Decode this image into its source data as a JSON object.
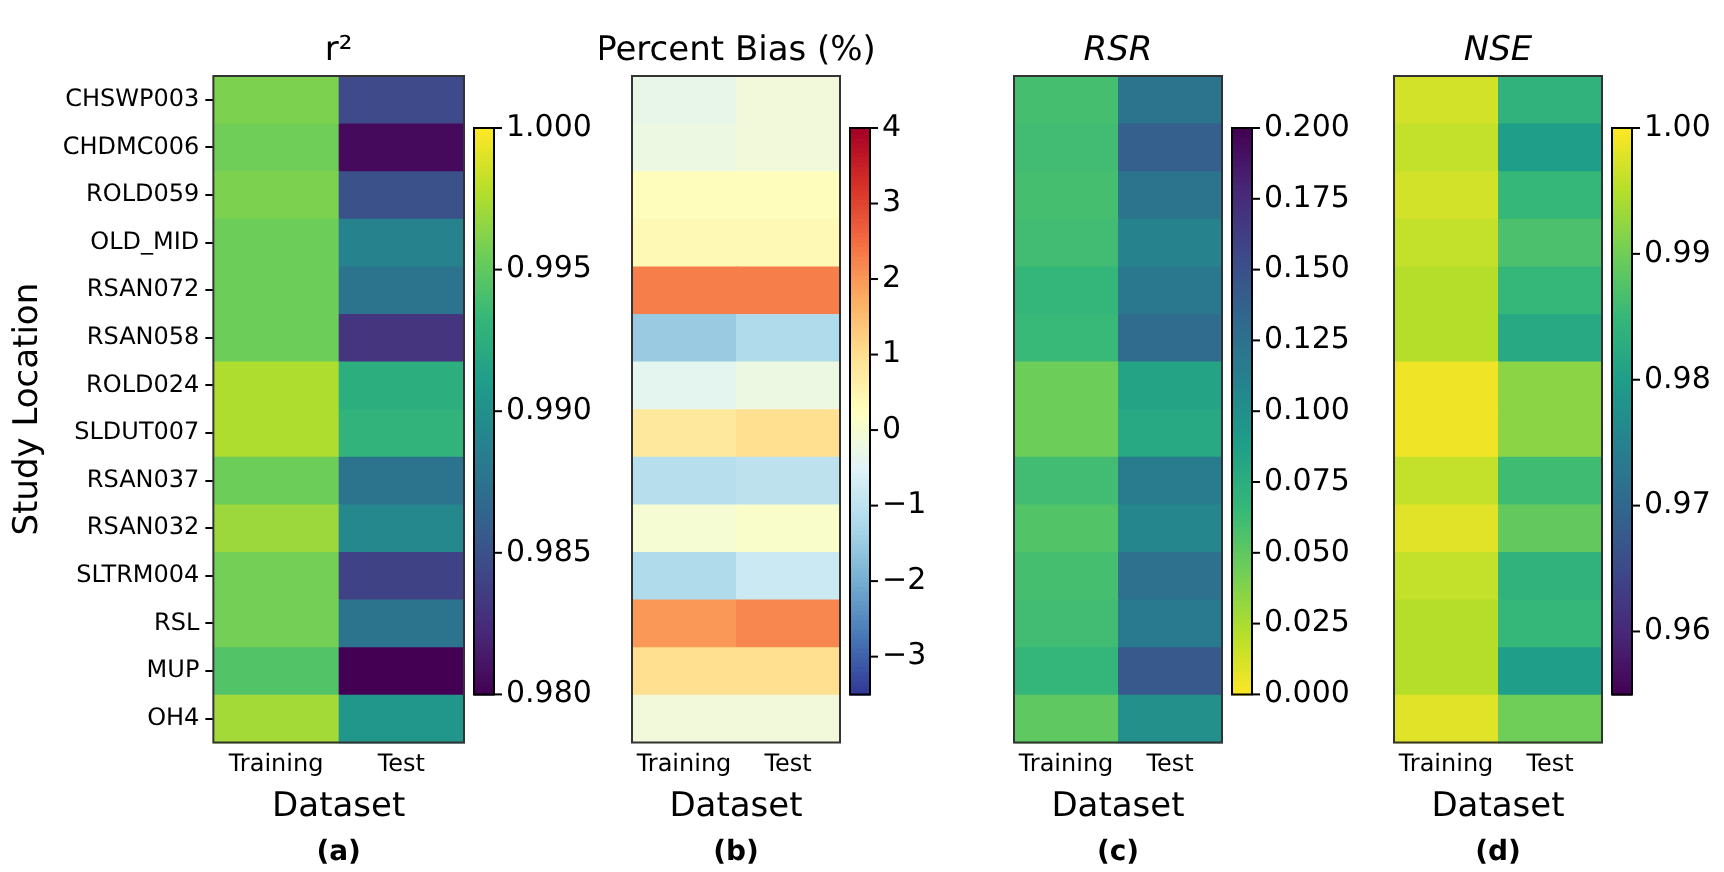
{
  "chart_data": [
    {
      "type": "heatmap",
      "title": "r²",
      "xlabel": "Dataset",
      "ylabel": "Study Location",
      "annotations": [
        "(a)"
      ],
      "categories": [
        "Training",
        "Test"
      ],
      "y_categories": [
        "CHSWP003",
        "CHDMC006",
        "ROLD059",
        "OLD_MID",
        "RSAN072",
        "RSAN058",
        "ROLD024",
        "SLDUT007",
        "RSAN037",
        "RSAN032",
        "SLTRM004",
        "RSL",
        "MUP",
        "OH4"
      ],
      "cells": [
        [
          0.996,
          0.9845
        ],
        [
          0.9956,
          0.9805
        ],
        [
          0.996,
          0.985
        ],
        [
          0.9955,
          0.989
        ],
        [
          0.9955,
          0.9876
        ],
        [
          0.9955,
          0.983
        ],
        [
          0.9976,
          0.9925
        ],
        [
          0.9976,
          0.993
        ],
        [
          0.9955,
          0.9876
        ],
        [
          0.997,
          0.9894
        ],
        [
          0.9957,
          0.984
        ],
        [
          0.9957,
          0.9876
        ],
        [
          0.9945,
          0.98
        ],
        [
          0.9972,
          0.9905
        ]
      ],
      "clim": [
        0.98,
        1.0
      ],
      "cticks": [
        {
          "value": 0.98,
          "label": "0.980"
        },
        {
          "value": 0.985,
          "label": "0.985"
        },
        {
          "value": 0.99,
          "label": "0.990"
        },
        {
          "value": 0.995,
          "label": "0.995"
        },
        {
          "value": 1.0,
          "label": "1.000"
        }
      ]
    },
    {
      "type": "heatmap",
      "title": "Percent Bias (%)",
      "xlabel": "Dataset",
      "annotations": [
        "(b)"
      ],
      "tick_labels": "x",
      "categories": [
        "Training",
        "Test"
      ],
      "y_categories": [
        null,
        null,
        null,
        null,
        null,
        null,
        null,
        null,
        null,
        null,
        null,
        null,
        null,
        null
      ],
      "cells": [
        [
          -0.3,
          -0.1
        ],
        [
          -0.2,
          -0.1
        ],
        [
          0.3,
          0.3
        ],
        [
          0.4,
          0.4
        ],
        [
          2.3,
          2.3
        ],
        [
          -1.5,
          -1.2
        ],
        [
          -0.4,
          -0.2
        ],
        [
          0.8,
          1.0
        ],
        [
          -1.1,
          -1.0
        ],
        [
          0.0,
          0.1
        ],
        [
          -1.2,
          -0.8
        ],
        [
          2.0,
          2.2
        ],
        [
          1.0,
          1.0
        ],
        [
          -0.1,
          -0.1
        ]
      ],
      "clim": [
        -3.5,
        4
      ],
      "cticks": [
        {
          "value": -3,
          "label": "−3"
        },
        {
          "value": -2,
          "label": "−2"
        },
        {
          "value": -1,
          "label": "−1"
        },
        0,
        1,
        2,
        3,
        4
      ]
    },
    {
      "type": "heatmap",
      "title": "RSR",
      "xlabel": "Dataset",
      "annotations": [
        "(c)"
      ],
      "tick_labels": "x",
      "categories": [
        "Training",
        "Test"
      ],
      "y_categories": [
        null,
        null,
        null,
        null,
        null,
        null,
        null,
        null,
        null,
        null,
        null,
        null,
        null,
        null
      ],
      "cells": [
        [
          0.06,
          0.124
        ],
        [
          0.062,
          0.14
        ],
        [
          0.06,
          0.124
        ],
        [
          0.062,
          0.11
        ],
        [
          0.068,
          0.12
        ],
        [
          0.065,
          0.13
        ],
        [
          0.045,
          0.084
        ],
        [
          0.045,
          0.08
        ],
        [
          0.062,
          0.116
        ],
        [
          0.055,
          0.108
        ],
        [
          0.06,
          0.126
        ],
        [
          0.062,
          0.118
        ],
        [
          0.068,
          0.144
        ],
        [
          0.05,
          0.1
        ]
      ],
      "clim": [
        0,
        0.2
      ],
      "cticks": [
        {
          "value": 0,
          "label": "0.000"
        },
        {
          "value": 0.025,
          "label": "0.025"
        },
        {
          "value": 0.05,
          "label": "0.050"
        },
        {
          "value": 0.075,
          "label": "0.075"
        },
        {
          "value": 0.1,
          "label": "0.100"
        },
        {
          "value": 0.125,
          "label": "0.125"
        },
        {
          "value": 0.15,
          "label": "0.150"
        },
        {
          "value": 0.175,
          "label": "0.175"
        },
        {
          "value": 0.2,
          "label": "0.200"
        }
      ]
    },
    {
      "type": "heatmap",
      "title": "NSE",
      "xlabel": "Dataset",
      "annotations": [
        "(d)"
      ],
      "tick_labels": "x",
      "categories": [
        "Training",
        "Test"
      ],
      "y_categories": [
        null,
        null,
        null,
        null,
        null,
        null,
        null,
        null,
        null,
        null,
        null,
        null,
        null,
        null
      ],
      "cells": [
        [
          0.997,
          0.984
        ],
        [
          0.996,
          0.98
        ],
        [
          0.997,
          0.985
        ],
        [
          0.996,
          0.987
        ],
        [
          0.995,
          0.985
        ],
        [
          0.995,
          0.982
        ],
        [
          0.999,
          0.992
        ],
        [
          0.999,
          0.992
        ],
        [
          0.996,
          0.986
        ],
        [
          0.998,
          0.989
        ],
        [
          0.996,
          0.984
        ],
        [
          0.995,
          0.985
        ],
        [
          0.995,
          0.98
        ],
        [
          0.998,
          0.99
        ]
      ],
      "clim": [
        0.955,
        1.0
      ],
      "cticks": [
        {
          "value": 0.96,
          "label": "0.96"
        },
        {
          "value": 0.97,
          "label": "0.97"
        },
        {
          "value": 0.98,
          "label": "0.98"
        },
        {
          "value": 0.99,
          "label": "0.99"
        },
        {
          "value": 1.0,
          "label": "1.00"
        }
      ]
    }
  ]
}
